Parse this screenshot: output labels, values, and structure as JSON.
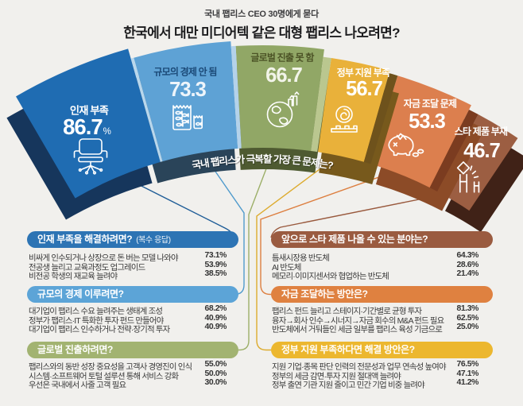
{
  "page": {
    "background": "#f1f0ed"
  },
  "header": {
    "kicker": "국내 팹리스 CEO 30명에게 묻다",
    "title": "한국에서 대만 미디어텍 같은 대형 팹리스 나오려면?"
  },
  "chart_data": {
    "type": "pie",
    "variant": "semi-circular fan of 3D wedges, angle and radius proportional to value",
    "title": "국내 팹리스가 극복할 가장 큰 문제는?",
    "unit": "%",
    "categories": [
      "인재 부족",
      "규모의 경제 안 됨",
      "글로벌 진출 못 함",
      "정부 지원 부족",
      "자금 조달 문제",
      "스타 제품 부재"
    ],
    "values": [
      86.7,
      73.3,
      66.7,
      56.7,
      53.3,
      46.7
    ],
    "colors": [
      "#1f6cb2",
      "#5ea2d5",
      "#91a766",
      "#e9b13a",
      "#dc7f4e",
      "#9c5e42"
    ]
  },
  "fan": {
    "question": "국내 팹리스가 극복할 가장 큰 문제는?",
    "segments": [
      {
        "label": "인재 부족",
        "value": 86.7,
        "value_display": "86.7",
        "pct_suffix": "%",
        "icon": "office-chair-icon",
        "color": "#1f6cb2",
        "side": "#16365c",
        "text": "#ffffff",
        "num": "#ffffff"
      },
      {
        "label": "규모의 경제 안 됨",
        "value": 73.3,
        "value_display": "73.3",
        "pct_suffix": "",
        "icon": "fish-tank-icon",
        "color": "#5ea2d5",
        "side": "#2a4459",
        "text": "#1b4977",
        "num": "#eef5fb"
      },
      {
        "label": "글로벌 진출 못 함",
        "value": 66.7,
        "value_display": "66.7",
        "pct_suffix": "",
        "icon": "globe-icon",
        "color": "#91a766",
        "side": "#4e5a31",
        "text": "#4c5326",
        "num": "#f2f4e9"
      },
      {
        "label": "정부 지원 부족",
        "value": 56.7,
        "value_display": "56.7",
        "pct_suffix": "",
        "icon": "hand-coin-icon",
        "color": "#e9b13a",
        "side": "#77591c",
        "text": "#ffffff",
        "num": "#ffffff"
      },
      {
        "label": "자금 조달 문제",
        "value": 53.3,
        "value_display": "53.3",
        "pct_suffix": "",
        "icon": "piggy-bank-icon",
        "color": "#dc7f4e",
        "side": "#8c4b27",
        "text": "#ffffff",
        "num": "#ffffff"
      },
      {
        "label": "스타 제품 부재",
        "value": 46.7,
        "value_display": "46.7",
        "pct_suffix": "",
        "icon": "star-figure-icon",
        "color": "#9c5e42",
        "side": "#402217",
        "text": "#ffffff",
        "num": "#ffffff"
      }
    ]
  },
  "sections": {
    "left": [
      {
        "title": "인재 부족을 해결하려면?",
        "suffix": "(복수 응답)",
        "color": "#2d74b4",
        "rows": [
          {
            "text": "비싸게 인수되거나 상장으로 돈 버는 모델 나와야",
            "pct": "73.1%"
          },
          {
            "text": "전공생 늘리고 교육과정도 업그레이드",
            "pct": "53.9%"
          },
          {
            "text": "비전공 학생의 재교육 늘려야",
            "pct": "38.5%"
          }
        ]
      },
      {
        "title": "규모의 경제 이루려면?",
        "suffix": "",
        "color": "#5ca4d7",
        "rows": [
          {
            "text": "대기업이 팹리스 수요 늘려주는 생태계 조성",
            "pct": "68.2%"
          },
          {
            "text": "정부가 팹리스·IT 특화한 투자 펀드 만들어야",
            "pct": "40.9%"
          },
          {
            "text": "대기업이 팹리스 인수하거나 전략·장기적 투자",
            "pct": "40.9%"
          }
        ]
      },
      {
        "title": "글로벌 진출하려면?",
        "suffix": "",
        "color": "#a2b371",
        "rows": [
          {
            "text": "팹리스와의 동반 성장 중요성을 고객사 경영진이 인식",
            "pct": "55.0%"
          },
          {
            "text": "시스템·소프트웨어 토털 설루션 통해 서비스 강화",
            "pct": "50.0%"
          },
          {
            "text": "우선은 국내에서 사줄 고객 필요",
            "pct": "30.0%"
          }
        ]
      }
    ],
    "right": [
      {
        "title": "앞으로 스타 제품 나올 수 있는 분야는?",
        "suffix": "",
        "color": "#9a5b40",
        "rows": [
          {
            "text": "틈새시장용 반도체",
            "pct": "64.3%"
          },
          {
            "text": "AI 반도체",
            "pct": "28.6%"
          },
          {
            "text": "메모리·이미지센서와 협업하는 반도체",
            "pct": "21.4%"
          }
        ]
      },
      {
        "title": "자금 조달하는 방안은?",
        "suffix": "",
        "color": "#df8140",
        "rows": [
          {
            "text": "팹리스 펀드 늘리고 스테이지·기간별로 균형 투자",
            "pct": "81.3%"
          },
          {
            "text": "융자→회사 인수→시너지→자금 회수의 M&A 펀드 필요",
            "pct": "62.5%"
          },
          {
            "text": "반도체에서 거둬들인 세금 일부를 팹리스 육성 기금으로",
            "pct": "25.0%"
          }
        ]
      },
      {
        "title": "정부 지원 부족하다면 해결 방안은?",
        "suffix": "",
        "color": "#ecb72f",
        "rows": [
          {
            "text": "지원 기업·종목 판단 인력의 전문성과 업무 연속성 높여야",
            "pct": "76.5%"
          },
          {
            "text": "정부의 세금 감면·투자 지원 절대액 늘려야",
            "pct": "47.1%"
          },
          {
            "text": "정부 출연 기관 지원 줄이고 민간 기업 비중 늘려야",
            "pct": "41.2%"
          }
        ]
      }
    ]
  },
  "connector_colors": [
    "#1f5d97",
    "#4f9acc",
    "#9caf68",
    "#ddab2e",
    "#dd7f40",
    "#99593d"
  ]
}
